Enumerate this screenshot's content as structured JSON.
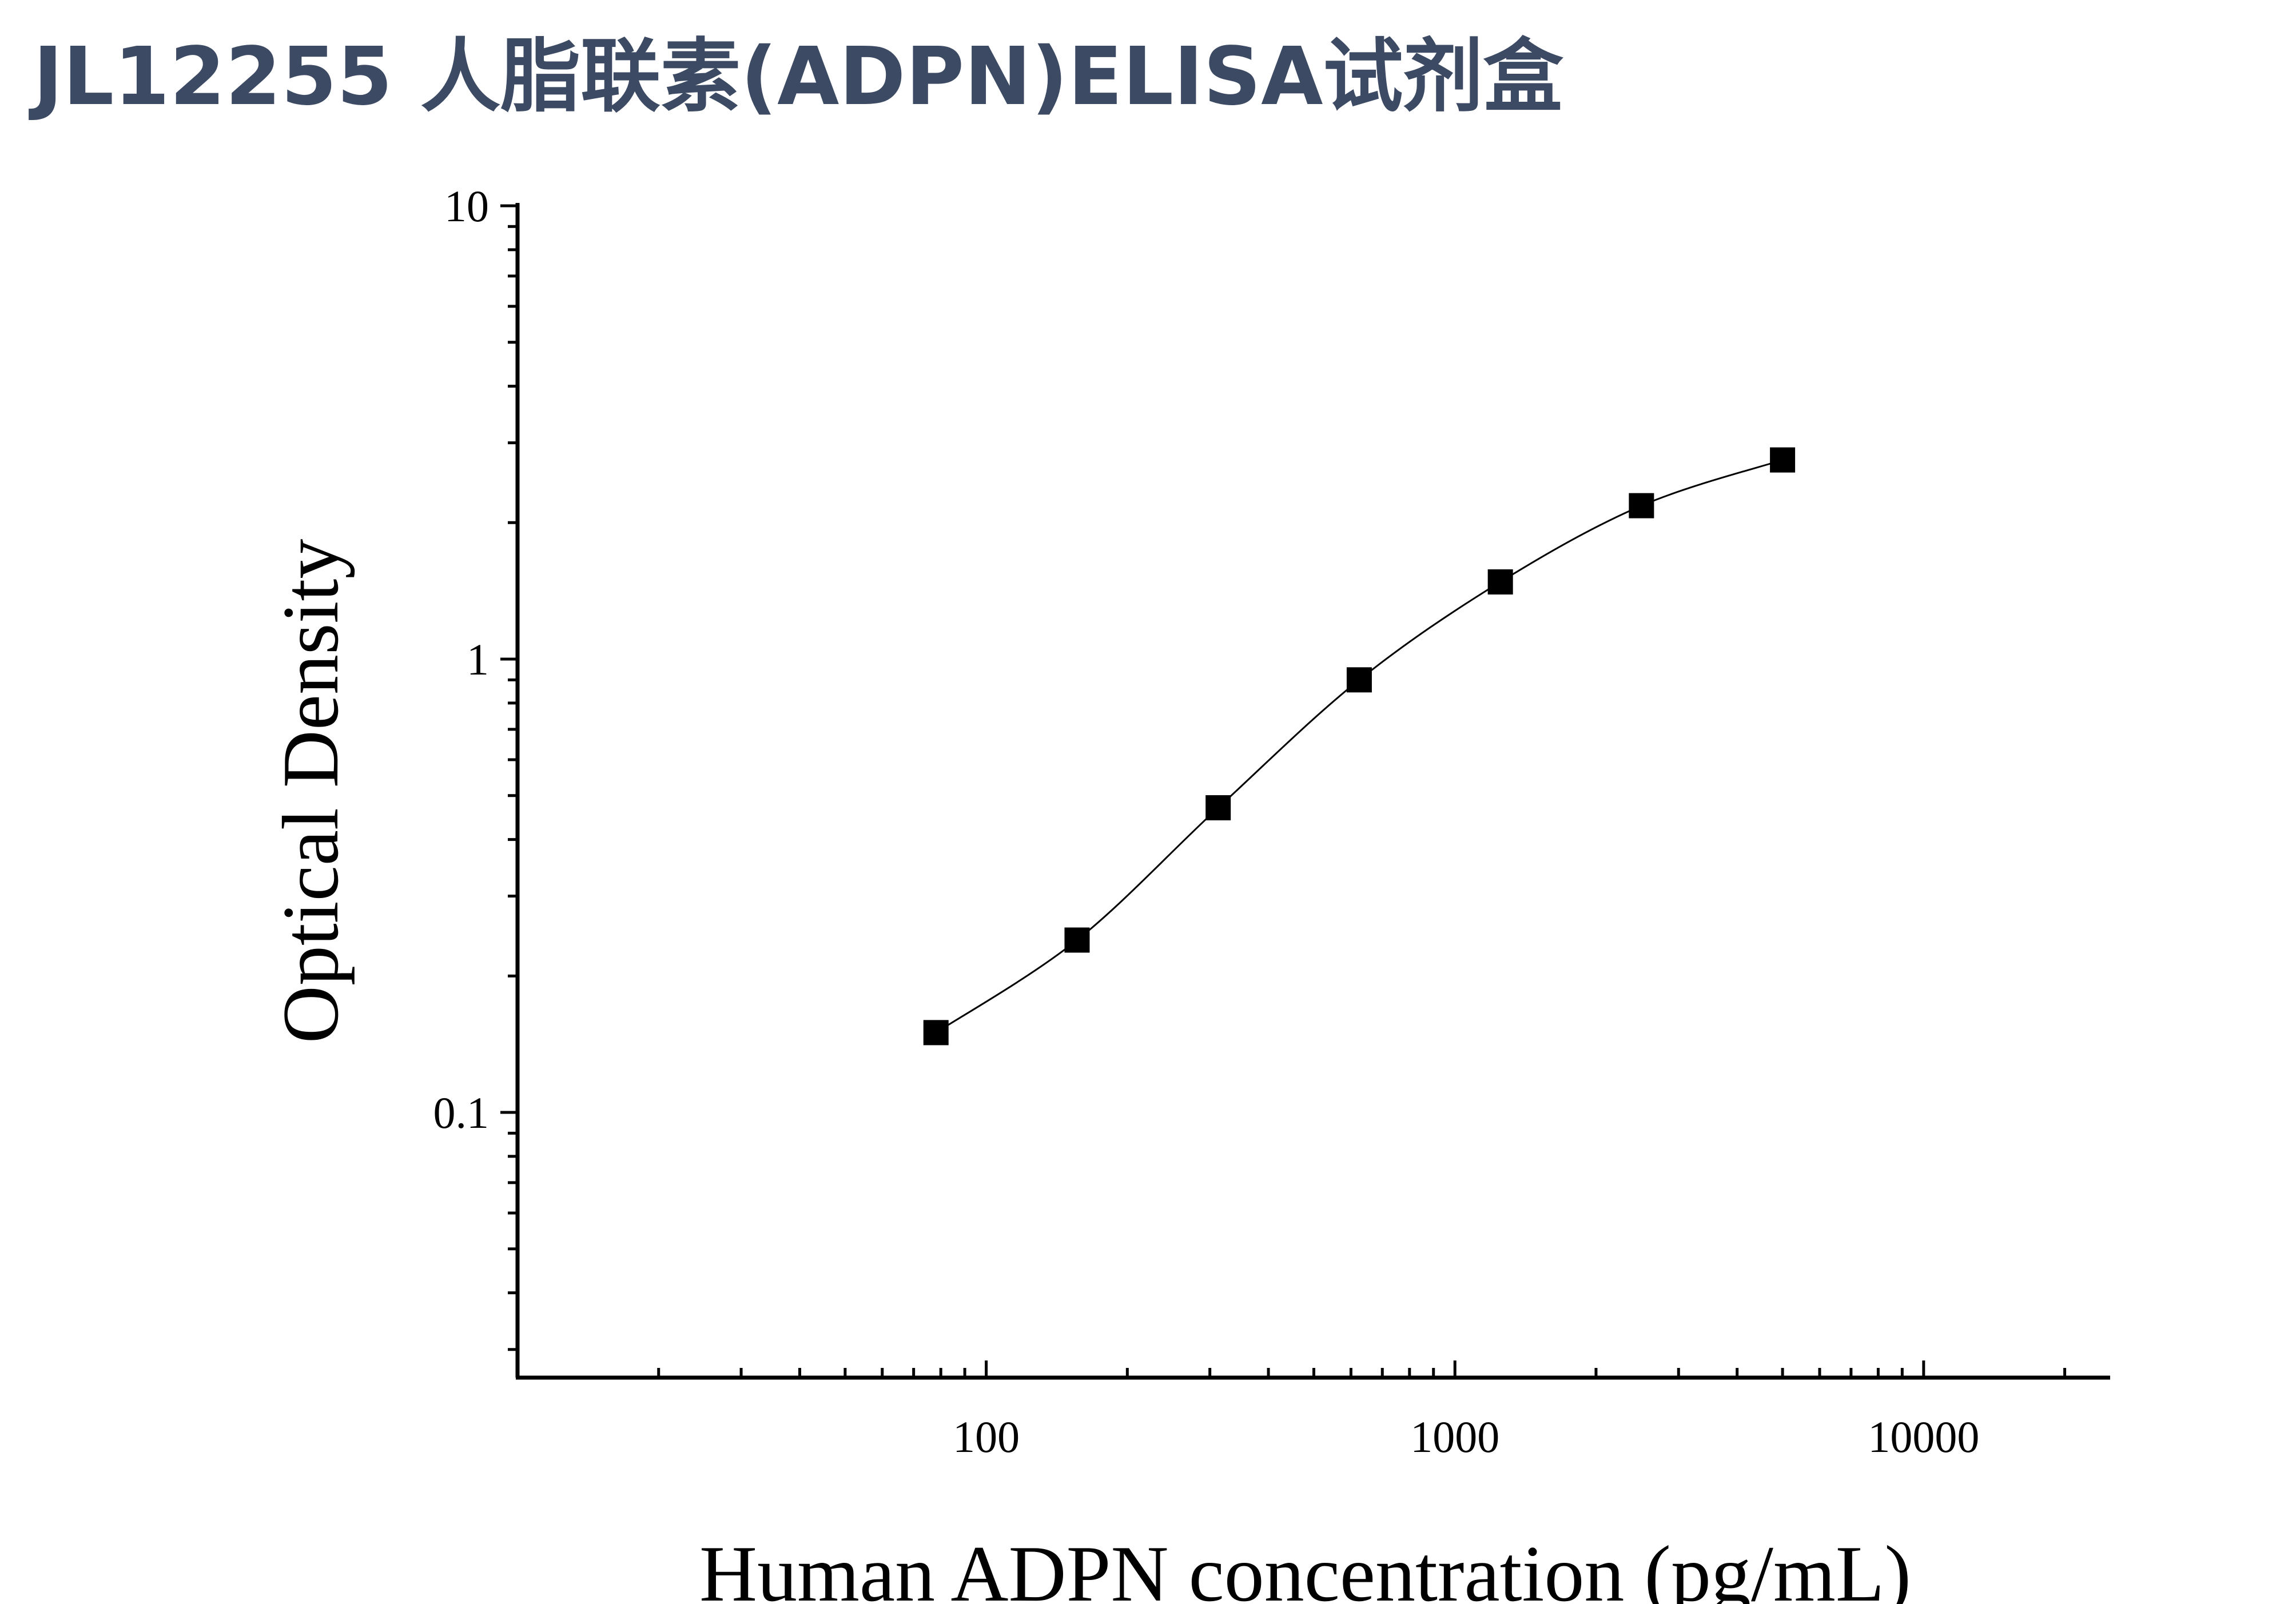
{
  "title": "JL12255 人脂联素(ADPN)ELISA试剂盒",
  "chart_data": {
    "type": "scatter",
    "xlabel": "Human ADPN concentration (pg/mL)",
    "ylabel": "Optical Density",
    "x_scale": "log",
    "y_scale": "log",
    "xlim": [
      10,
      25000
    ],
    "ylim": [
      0.026,
      10
    ],
    "x_ticks": [
      100,
      1000,
      10000
    ],
    "x_tick_labels": [
      "100",
      "1000",
      "10000"
    ],
    "y_ticks": [
      0.1,
      1,
      10
    ],
    "y_tick_labels": [
      "0.1",
      "1",
      "10"
    ],
    "grid": false,
    "series": [
      {
        "x": [
          78.125,
          156.25,
          312.5,
          625,
          1250,
          2500,
          5000
        ],
        "y": [
          0.15,
          0.24,
          0.47,
          0.9,
          1.48,
          2.18,
          2.75
        ],
        "marker": "square",
        "fit_line": true
      }
    ],
    "colors": {
      "title": "#3c4a63",
      "axis": "#000000",
      "series": "#000000"
    }
  }
}
